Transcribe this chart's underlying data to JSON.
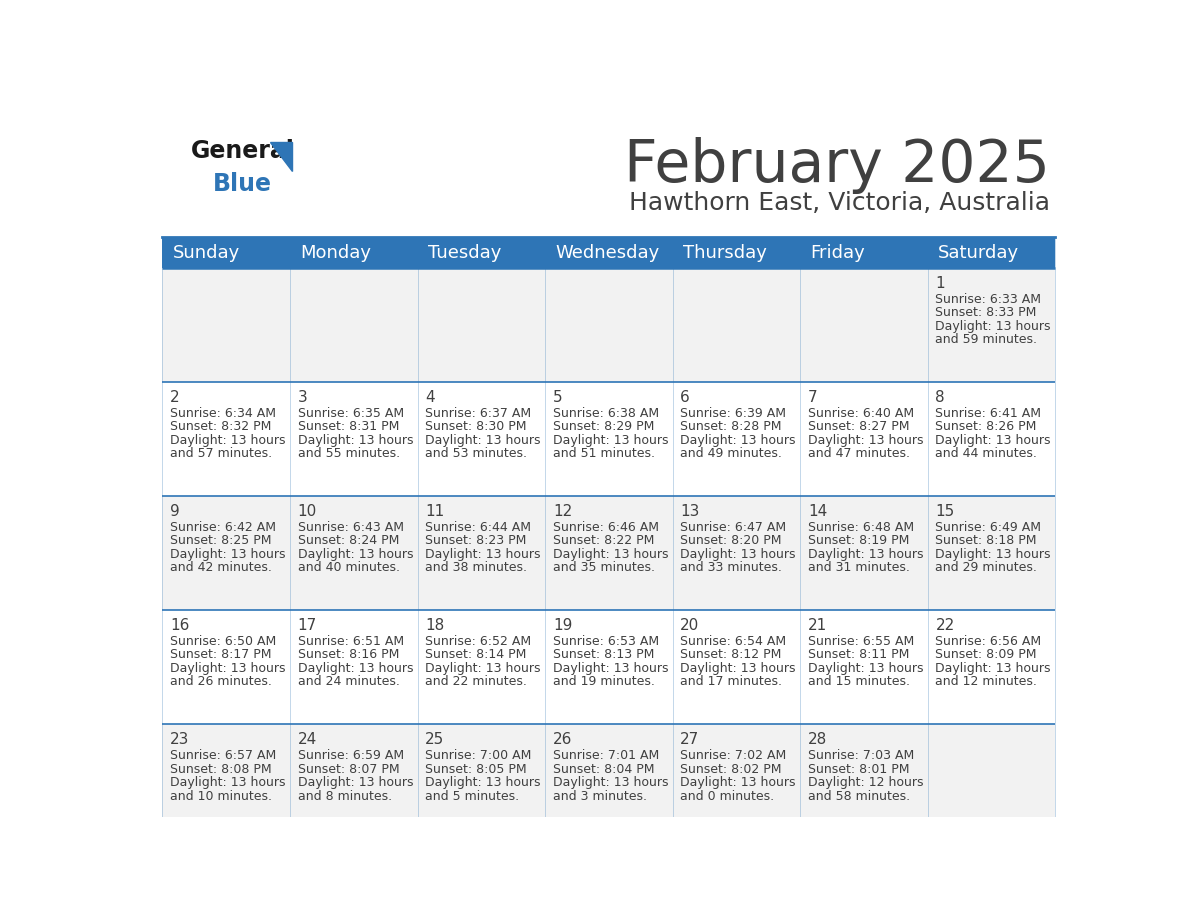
{
  "title": "February 2025",
  "subtitle": "Hawthorn East, Victoria, Australia",
  "header_color": "#2e75b6",
  "header_text_color": "#ffffff",
  "day_names": [
    "Sunday",
    "Monday",
    "Tuesday",
    "Wednesday",
    "Thursday",
    "Friday",
    "Saturday"
  ],
  "bg_color": "#ffffff",
  "row_colors": [
    "#f2f2f2",
    "#ffffff",
    "#f2f2f2",
    "#ffffff",
    "#f2f2f2"
  ],
  "cell_text_color": "#404040",
  "day_number_color": "#404040",
  "grid_line_color": "#2e75b6",
  "logo_general_color": "#1a1a1a",
  "logo_blue_color": "#2e75b6",
  "days": [
    {
      "date": 1,
      "col": 6,
      "row": 0,
      "sunrise": "6:33 AM",
      "sunset": "8:33 PM",
      "daylight": "13 hours and 59 minutes."
    },
    {
      "date": 2,
      "col": 0,
      "row": 1,
      "sunrise": "6:34 AM",
      "sunset": "8:32 PM",
      "daylight": "13 hours and 57 minutes."
    },
    {
      "date": 3,
      "col": 1,
      "row": 1,
      "sunrise": "6:35 AM",
      "sunset": "8:31 PM",
      "daylight": "13 hours and 55 minutes."
    },
    {
      "date": 4,
      "col": 2,
      "row": 1,
      "sunrise": "6:37 AM",
      "sunset": "8:30 PM",
      "daylight": "13 hours and 53 minutes."
    },
    {
      "date": 5,
      "col": 3,
      "row": 1,
      "sunrise": "6:38 AM",
      "sunset": "8:29 PM",
      "daylight": "13 hours and 51 minutes."
    },
    {
      "date": 6,
      "col": 4,
      "row": 1,
      "sunrise": "6:39 AM",
      "sunset": "8:28 PM",
      "daylight": "13 hours and 49 minutes."
    },
    {
      "date": 7,
      "col": 5,
      "row": 1,
      "sunrise": "6:40 AM",
      "sunset": "8:27 PM",
      "daylight": "13 hours and 47 minutes."
    },
    {
      "date": 8,
      "col": 6,
      "row": 1,
      "sunrise": "6:41 AM",
      "sunset": "8:26 PM",
      "daylight": "13 hours and 44 minutes."
    },
    {
      "date": 9,
      "col": 0,
      "row": 2,
      "sunrise": "6:42 AM",
      "sunset": "8:25 PM",
      "daylight": "13 hours and 42 minutes."
    },
    {
      "date": 10,
      "col": 1,
      "row": 2,
      "sunrise": "6:43 AM",
      "sunset": "8:24 PM",
      "daylight": "13 hours and 40 minutes."
    },
    {
      "date": 11,
      "col": 2,
      "row": 2,
      "sunrise": "6:44 AM",
      "sunset": "8:23 PM",
      "daylight": "13 hours and 38 minutes."
    },
    {
      "date": 12,
      "col": 3,
      "row": 2,
      "sunrise": "6:46 AM",
      "sunset": "8:22 PM",
      "daylight": "13 hours and 35 minutes."
    },
    {
      "date": 13,
      "col": 4,
      "row": 2,
      "sunrise": "6:47 AM",
      "sunset": "8:20 PM",
      "daylight": "13 hours and 33 minutes."
    },
    {
      "date": 14,
      "col": 5,
      "row": 2,
      "sunrise": "6:48 AM",
      "sunset": "8:19 PM",
      "daylight": "13 hours and 31 minutes."
    },
    {
      "date": 15,
      "col": 6,
      "row": 2,
      "sunrise": "6:49 AM",
      "sunset": "8:18 PM",
      "daylight": "13 hours and 29 minutes."
    },
    {
      "date": 16,
      "col": 0,
      "row": 3,
      "sunrise": "6:50 AM",
      "sunset": "8:17 PM",
      "daylight": "13 hours and 26 minutes."
    },
    {
      "date": 17,
      "col": 1,
      "row": 3,
      "sunrise": "6:51 AM",
      "sunset": "8:16 PM",
      "daylight": "13 hours and 24 minutes."
    },
    {
      "date": 18,
      "col": 2,
      "row": 3,
      "sunrise": "6:52 AM",
      "sunset": "8:14 PM",
      "daylight": "13 hours and 22 minutes."
    },
    {
      "date": 19,
      "col": 3,
      "row": 3,
      "sunrise": "6:53 AM",
      "sunset": "8:13 PM",
      "daylight": "13 hours and 19 minutes."
    },
    {
      "date": 20,
      "col": 4,
      "row": 3,
      "sunrise": "6:54 AM",
      "sunset": "8:12 PM",
      "daylight": "13 hours and 17 minutes."
    },
    {
      "date": 21,
      "col": 5,
      "row": 3,
      "sunrise": "6:55 AM",
      "sunset": "8:11 PM",
      "daylight": "13 hours and 15 minutes."
    },
    {
      "date": 22,
      "col": 6,
      "row": 3,
      "sunrise": "6:56 AM",
      "sunset": "8:09 PM",
      "daylight": "13 hours and 12 minutes."
    },
    {
      "date": 23,
      "col": 0,
      "row": 4,
      "sunrise": "6:57 AM",
      "sunset": "8:08 PM",
      "daylight": "13 hours and 10 minutes."
    },
    {
      "date": 24,
      "col": 1,
      "row": 4,
      "sunrise": "6:59 AM",
      "sunset": "8:07 PM",
      "daylight": "13 hours and 8 minutes."
    },
    {
      "date": 25,
      "col": 2,
      "row": 4,
      "sunrise": "7:00 AM",
      "sunset": "8:05 PM",
      "daylight": "13 hours and 5 minutes."
    },
    {
      "date": 26,
      "col": 3,
      "row": 4,
      "sunrise": "7:01 AM",
      "sunset": "8:04 PM",
      "daylight": "13 hours and 3 minutes."
    },
    {
      "date": 27,
      "col": 4,
      "row": 4,
      "sunrise": "7:02 AM",
      "sunset": "8:02 PM",
      "daylight": "13 hours and 0 minutes."
    },
    {
      "date": 28,
      "col": 5,
      "row": 4,
      "sunrise": "7:03 AM",
      "sunset": "8:01 PM",
      "daylight": "12 hours and 58 minutes."
    }
  ],
  "title_fontsize": 42,
  "subtitle_fontsize": 18,
  "header_fontsize": 13,
  "date_num_fontsize": 11,
  "cell_info_fontsize": 9
}
